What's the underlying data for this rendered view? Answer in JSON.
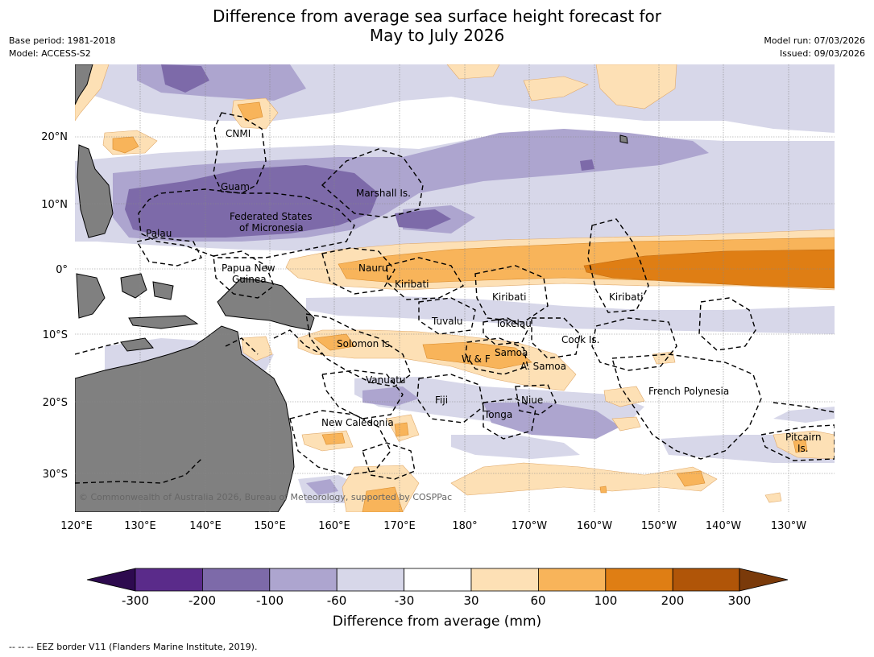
{
  "title_line1": "Difference from average sea surface height forecast for",
  "title_line2": "May to July 2026",
  "meta_left": {
    "base_period": "Base period: 1981-2018",
    "model": "Model: ACCESS-S2"
  },
  "meta_right": {
    "model_run": "Model run: 07/03/2026",
    "issued": "Issued: 09/03/2026"
  },
  "map": {
    "lon_ticks": [
      "120°E",
      "130°E",
      "140°E",
      "150°E",
      "160°E",
      "170°E",
      "180°",
      "170°W",
      "160°W",
      "150°W",
      "140°W",
      "130°W"
    ],
    "lat_ticks": [
      "20°N",
      "10°N",
      "0°",
      "10°S",
      "20°S",
      "30°S"
    ],
    "region_labels": {
      "cnmi": "CNMI",
      "guam": "Guam",
      "marshall": "Marshall Is.",
      "fsm1": "Federated States",
      "fsm2": "of Micronesia",
      "palau": "Palau",
      "png1": "Papua New",
      "png2": "Guinea",
      "nauru": "Nauru",
      "kiribati_w": "Kiribati",
      "kiribati_c": "Kiribati",
      "kiribati_e": "Kiribati",
      "tuvalu": "Tuvalu",
      "tokelau": "Tokelau",
      "cook": "Cook Is.",
      "solomon": "Solomon Is.",
      "samoa": "Samoa",
      "wf": "W & F",
      "asamoa": "A. Samoa",
      "vanuatu": "Vanuatu",
      "fiji": "Fiji",
      "niue": "Niue",
      "tonga": "Tonga",
      "frpoly": "French Polynesia",
      "newcal": "New Caledonia",
      "pitcairn1": "Pitcairn",
      "pitcairn2": "Is."
    },
    "copyright": "© Commonwealth of Australia 2026, Bureau of Meteorology, supported by COSPPac"
  },
  "colorbar": {
    "title": "Difference from average (mm)",
    "ticks": [
      "-300",
      "-200",
      "-100",
      "-60",
      "-30",
      "30",
      "60",
      "100",
      "200",
      "300"
    ],
    "colors": [
      "#2d0a4e",
      "#5a2b8a",
      "#7d6aa9",
      "#ada5cf",
      "#d7d7e9",
      "#ffffff",
      "#fde0b5",
      "#f8b45a",
      "#df7e14",
      "#b05508",
      "#7a3a0a"
    ]
  },
  "footnote": "--  --  -- EEZ border V11 (Flanders Marine Institute, 2019)."
}
